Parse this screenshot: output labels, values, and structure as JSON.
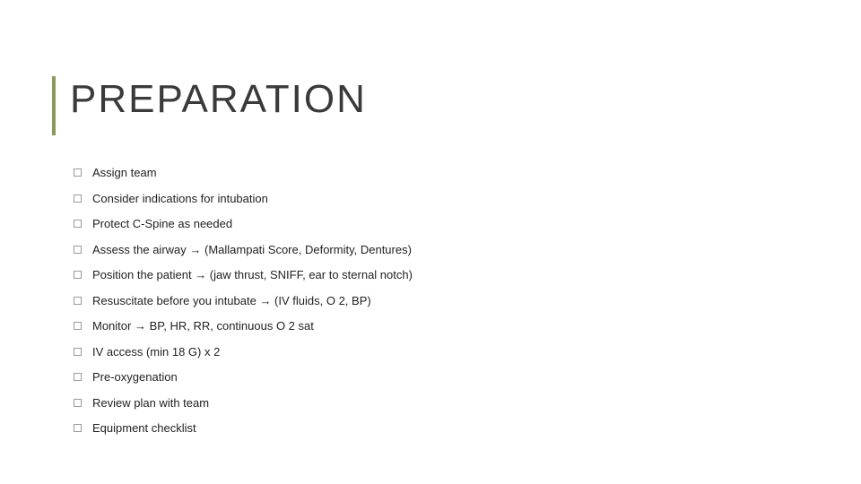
{
  "slide": {
    "title": "PREPARATION",
    "title_color": "#3a3a3a",
    "title_fontsize": 44,
    "title_letter_spacing": 2,
    "accent_bar_color": "#8a9a5b",
    "background_color": "#ffffff",
    "checkbox_border_color": "#9a9a9a",
    "item_text_color": "#222222",
    "item_fontsize": 13,
    "items": [
      "Assign team",
      "Consider indications for intubation",
      "Protect C-Spine as needed",
      "Assess the airway → (Mallampati Score, Deformity, Dentures)",
      "Position the patient → (jaw thrust, SNIFF, ear to sternal notch)",
      "Resuscitate before you intubate → (IV fluids, O 2, BP)",
      "Monitor → BP, HR, RR, continuous O 2 sat",
      "IV access (min 18 G)  x 2",
      "Pre-oxygenation",
      "Review plan with team",
      "Equipment checklist"
    ]
  }
}
